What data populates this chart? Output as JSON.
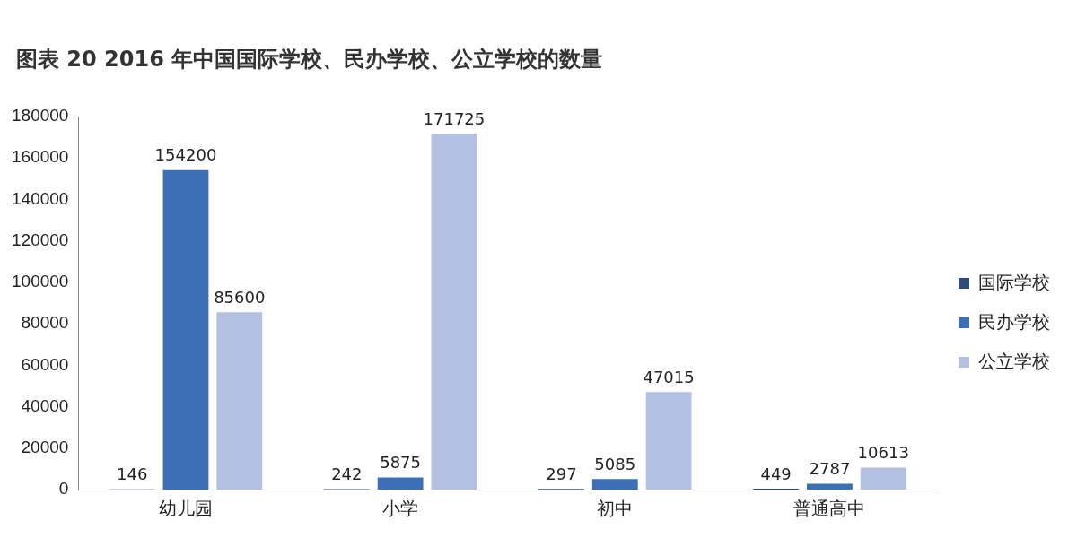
{
  "chart_data": {
    "type": "bar",
    "title": "图表 20 2016 年中国国际学校、民办学校、公立学校的数量",
    "categories": [
      "幼儿园",
      "小学",
      "初中",
      "普通高中"
    ],
    "series": [
      {
        "name": "国际学校",
        "color": "#2e4d7b",
        "values": [
          146,
          242,
          297,
          449
        ]
      },
      {
        "name": "民办学校",
        "color": "#3d6fb6",
        "values": [
          154200,
          5875,
          5085,
          2787
        ]
      },
      {
        "name": "公立学校",
        "color": "#b3c0e2",
        "values": [
          85600,
          171725,
          47015,
          10613
        ]
      }
    ],
    "ylim": [
      0,
      180000
    ],
    "yticks": [
      0,
      20000,
      40000,
      60000,
      80000,
      100000,
      120000,
      140000,
      160000,
      180000
    ],
    "grid": false,
    "legend": "right",
    "data_labels": true
  }
}
